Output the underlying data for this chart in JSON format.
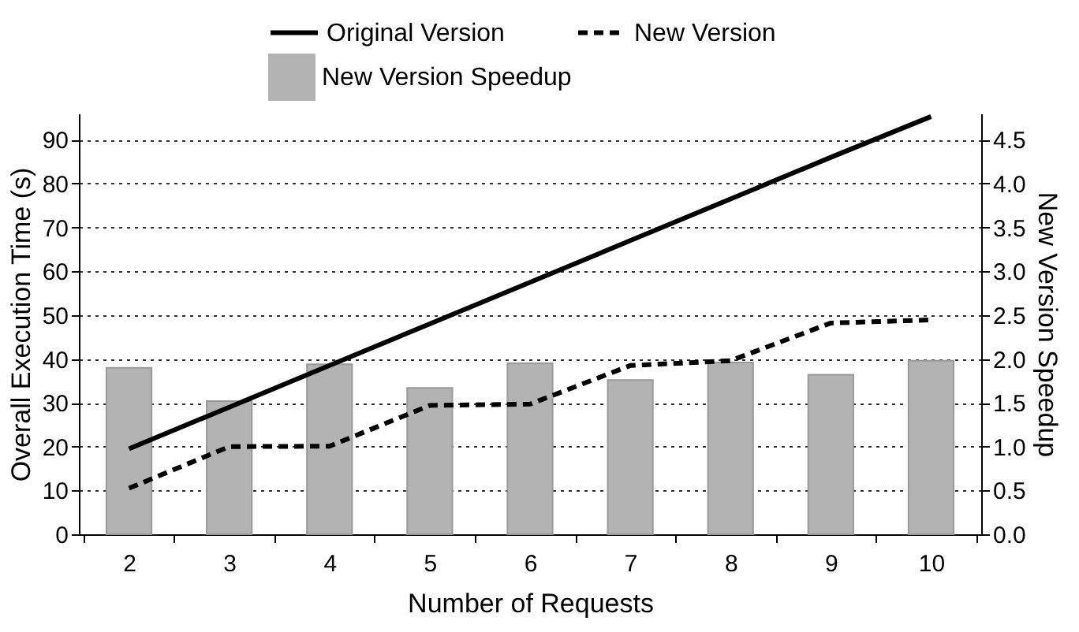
{
  "chart_data": {
    "type": "line",
    "xlabel": "Number of Requests",
    "ylabel": "Overall Execution Time (s)",
    "y2label": "New Version Speedup",
    "categories": [
      "2",
      "3",
      "4",
      "5",
      "6",
      "7",
      "8",
      "9",
      "10"
    ],
    "series": [
      {
        "name": "New Version Speedup",
        "type": "bar",
        "axis": "y2",
        "color": "#b3b3b3",
        "values": [
          1.9,
          1.52,
          1.94,
          1.67,
          1.95,
          1.76,
          1.96,
          1.82,
          1.98
        ]
      },
      {
        "name": "Original Version",
        "color": "#000000",
        "line_style": "solid",
        "values": [
          19.5,
          29,
          38.5,
          48,
          57.5,
          67,
          76.5,
          86,
          95.3
        ]
      },
      {
        "name": "New Version",
        "color": "#000000",
        "line_style": "dashed",
        "values": [
          10.5,
          20,
          20.1,
          29.4,
          29.7,
          38.5,
          39.6,
          48.2,
          48.9
        ]
      }
    ],
    "ylim": [
      0,
      96
    ],
    "yticks": [
      0,
      10,
      20,
      30,
      40,
      50,
      60,
      70,
      80,
      90
    ],
    "y2lim": [
      0,
      4.8
    ],
    "y2ticks": [
      {
        "value": 0,
        "label": "0.0"
      },
      0.5,
      {
        "value": 1,
        "label": "1.0"
      },
      1.5,
      {
        "value": 2,
        "label": "2.0"
      },
      2.5,
      {
        "value": 3,
        "label": "3.0"
      },
      3.5,
      {
        "value": 4,
        "label": "4.0"
      },
      4.5
    ],
    "grid": "y",
    "legend": "top",
    "marker": "none"
  }
}
